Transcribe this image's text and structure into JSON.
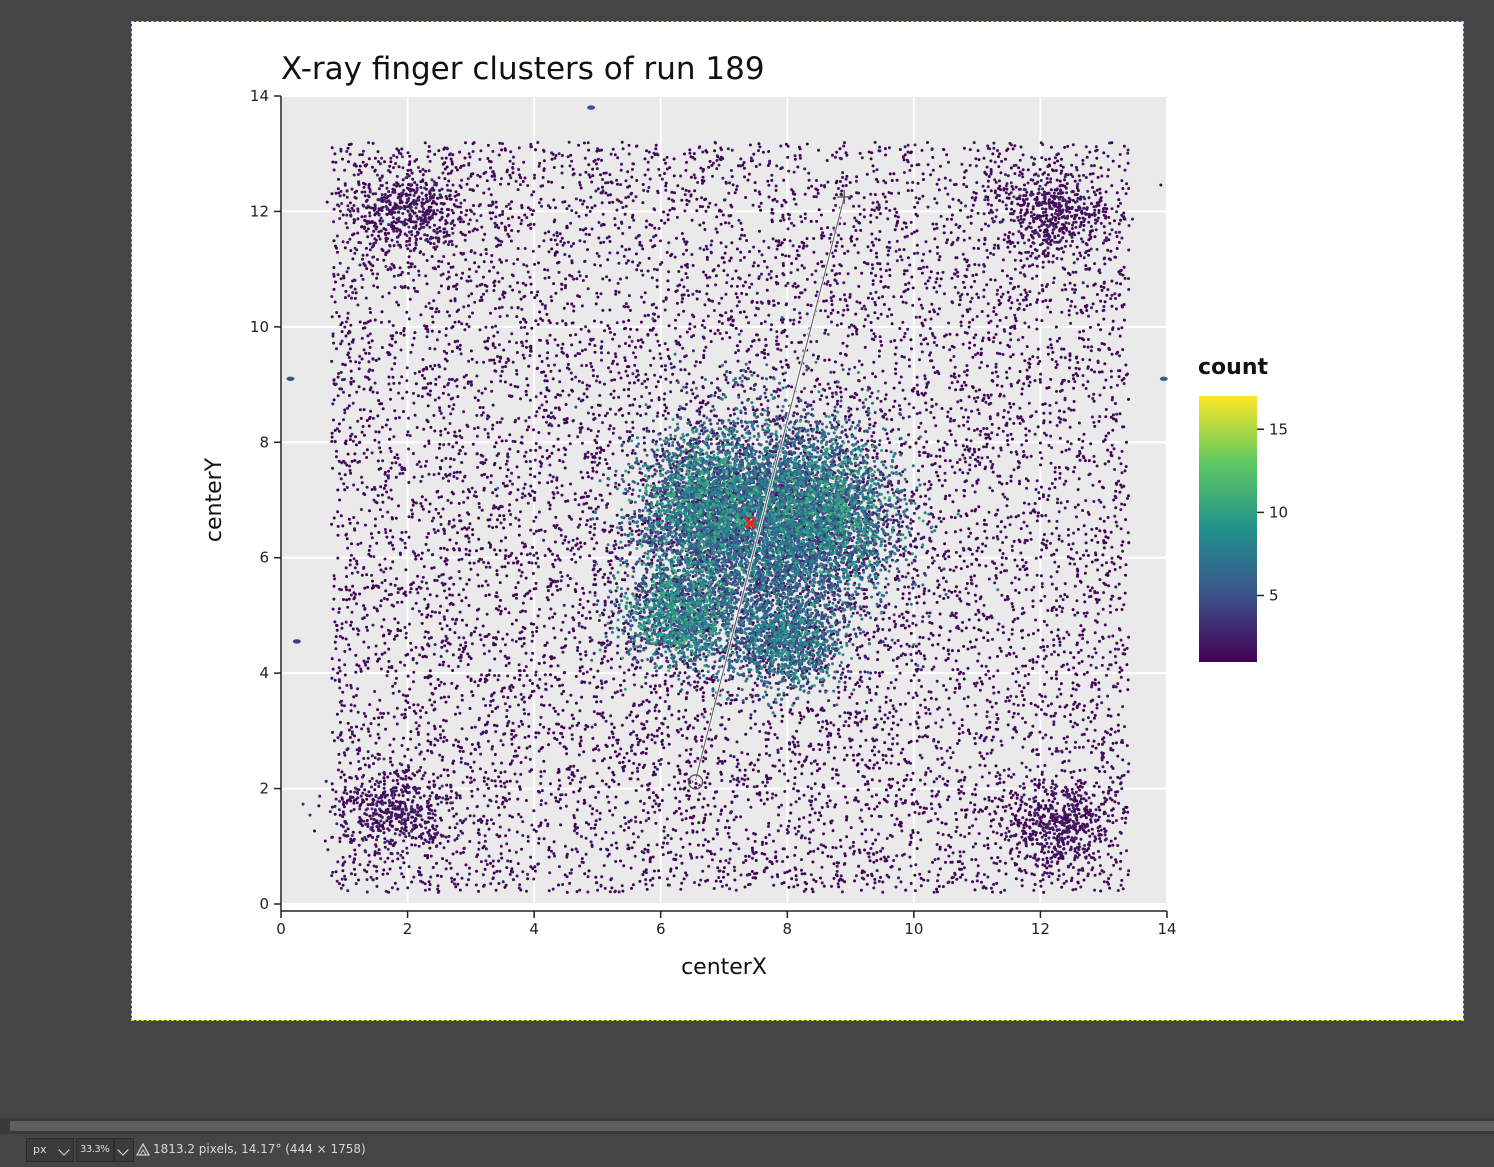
{
  "statusbar": {
    "unit": "px",
    "zoom": "33.3%",
    "measure_text": "1813.2 pixels, 14.17° (444 × 1758)"
  },
  "colors": {
    "background": "#454545",
    "panel_bg": "#eaeaea",
    "gridline": "#ffffff",
    "marker": "#ff1a1a",
    "selection_outline": "#d8d800",
    "colormap": [
      "#440154",
      "#3b528b",
      "#21918c",
      "#5ec962",
      "#fde725"
    ]
  },
  "chart_data": {
    "type": "scatter",
    "title": "X-ray finger clusters of run 189",
    "xlabel": "centerX",
    "ylabel": "centerY",
    "xlim": [
      0,
      14
    ],
    "ylim": [
      0,
      14
    ],
    "xticks": [
      0,
      2,
      4,
      6,
      8,
      10,
      12,
      14
    ],
    "yticks": [
      0,
      2,
      4,
      6,
      8,
      10,
      12,
      14
    ],
    "grid": true,
    "colorbar": {
      "label": "count",
      "range": [
        1,
        17
      ],
      "ticks": [
        5,
        10,
        15
      ],
      "colormap": "viridis"
    },
    "legend_position": "right",
    "clusters": [
      {
        "cx": 7.6,
        "cy": 6.4,
        "sx": 1.45,
        "sy": 1.75,
        "n": 5200,
        "count_mean": 6
      },
      {
        "cx": 8.6,
        "cy": 6.8,
        "sx": 1.0,
        "sy": 1.05,
        "n": 2000,
        "count_mean": 8
      },
      {
        "cx": 6.7,
        "cy": 6.9,
        "sx": 0.85,
        "sy": 0.95,
        "n": 1700,
        "count_mean": 8
      },
      {
        "cx": 6.3,
        "cy": 5.0,
        "sx": 0.75,
        "sy": 0.75,
        "n": 1300,
        "count_mean": 8
      },
      {
        "cx": 8.0,
        "cy": 4.5,
        "sx": 0.7,
        "sy": 0.6,
        "n": 900,
        "count_mean": 7
      },
      {
        "cx": 2.0,
        "cy": 12.0,
        "sx": 0.75,
        "sy": 0.6,
        "n": 450,
        "count_mean": 2
      },
      {
        "cx": 12.2,
        "cy": 12.0,
        "sx": 0.75,
        "sy": 0.6,
        "n": 450,
        "count_mean": 2
      },
      {
        "cx": 1.8,
        "cy": 1.6,
        "sx": 0.8,
        "sy": 0.6,
        "n": 450,
        "count_mean": 2
      },
      {
        "cx": 12.3,
        "cy": 1.4,
        "sx": 0.7,
        "sy": 0.55,
        "n": 450,
        "count_mean": 2
      }
    ],
    "uniform_background": {
      "xrange": [
        0.8,
        13.4
      ],
      "yrange": [
        0.2,
        13.2
      ],
      "n": 11000,
      "count_mean": 1.5
    },
    "small_blobs": [
      {
        "x": 0.15,
        "y": 9.1,
        "count": 5
      },
      {
        "x": 0.25,
        "y": 4.55,
        "count": 4
      },
      {
        "x": 13.95,
        "y": 9.1,
        "count": 6
      },
      {
        "x": 4.9,
        "y": 13.8,
        "count": 5
      }
    ],
    "annotations": {
      "center_marker": {
        "x": 7.42,
        "y": 6.6,
        "symbol": "x"
      },
      "measure_line": {
        "x1": 8.9,
        "y1": 12.25,
        "x2": 6.55,
        "y2": 2.15
      }
    }
  }
}
